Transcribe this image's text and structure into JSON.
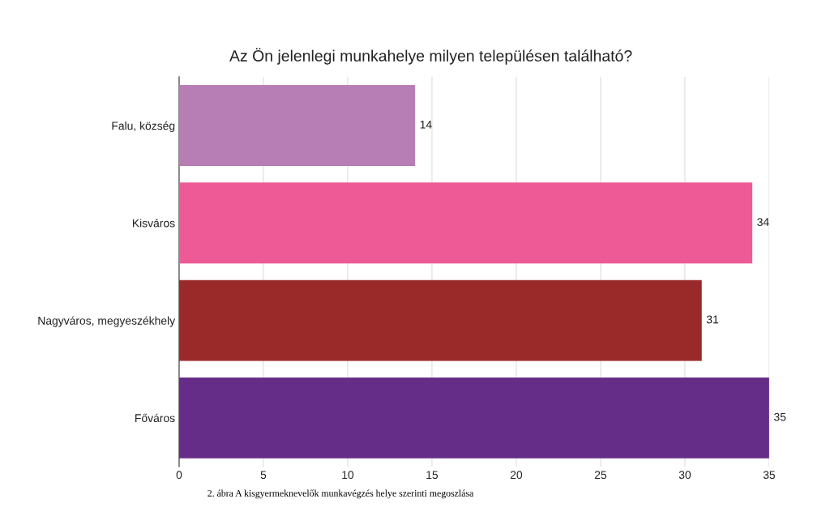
{
  "chart_data": {
    "type": "bar",
    "orientation": "horizontal",
    "title": "Az Ön jelenlegi munkahelye milyen településen található?",
    "categories": [
      "Falu, község",
      "Kisváros",
      "Nagyváros, megyeszékhely",
      "Főváros"
    ],
    "values": [
      14,
      34,
      31,
      35
    ],
    "colors": [
      "#b77db5",
      "#ee5a95",
      "#9a2a2a",
      "#662d88"
    ],
    "xlim": [
      0,
      35
    ],
    "xticks": [
      0,
      5,
      10,
      15,
      20,
      25,
      30,
      35
    ],
    "grid": "x",
    "data_labels": true,
    "annotations": [
      "2. ábra A kisgyermeknevelők munkavégzés helye szerinti megoszlása"
    ]
  }
}
